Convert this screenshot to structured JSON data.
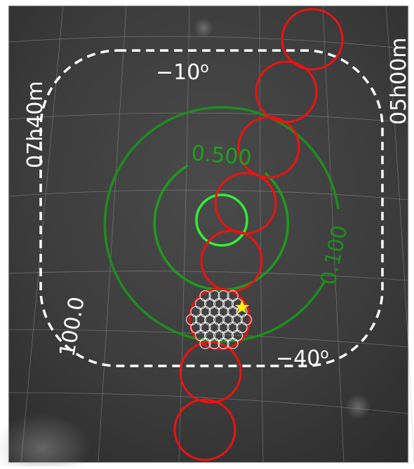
{
  "labels": {
    "dec_top": {
      "text": "−10",
      "sup": "o"
    },
    "dec_bottom": {
      "text": "−40",
      "sup": "o"
    },
    "ra_right": "05h00m",
    "ra_left": "07h40m",
    "contour_inner": "0.500",
    "contour_outer": "0.100",
    "contour_dashed": "100.0"
  }
}
